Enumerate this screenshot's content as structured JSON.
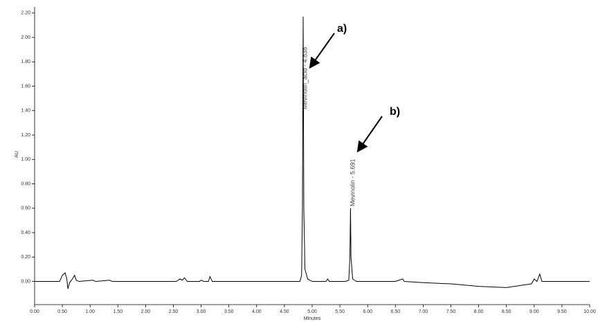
{
  "chart_data": {
    "type": "line",
    "x_label": "Minutes",
    "y_label": "AU",
    "annotations": [
      "a)",
      "b)"
    ],
    "peak_labels": [
      "Mevinolin_acid - 4.838",
      "Mevinolin - 5.691"
    ],
    "color": "#000000",
    "x": [
      0.0,
      0.45,
      0.5,
      0.55,
      0.58,
      0.6,
      0.63,
      0.68,
      0.72,
      0.75,
      0.8,
      1.05,
      1.1,
      1.35,
      1.4,
      2.55,
      2.62,
      2.66,
      2.7,
      2.75,
      2.97,
      3.0,
      3.05,
      3.13,
      3.16,
      3.2,
      4.7,
      4.78,
      4.81,
      4.825,
      4.838,
      4.85,
      4.87,
      4.92,
      5.0,
      5.25,
      5.28,
      5.31,
      5.6,
      5.66,
      5.68,
      5.691,
      5.7,
      5.73,
      5.8,
      6.5,
      6.63,
      6.66,
      7.0,
      7.5,
      8.0,
      8.5,
      8.8,
      8.95,
      9.0,
      9.05,
      9.1,
      9.14,
      9.5,
      10.0
    ],
    "values": [
      0.0,
      0.0,
      0.05,
      0.07,
      0.02,
      -0.06,
      -0.01,
      0.02,
      0.05,
      0.01,
      0.0,
      0.01,
      0.0,
      0.01,
      0.0,
      0.0,
      0.02,
      0.01,
      0.03,
      0.0,
      0.0,
      0.01,
      0.0,
      0.0,
      0.04,
      0.0,
      0.0,
      0.0,
      0.05,
      0.6,
      2.17,
      0.6,
      0.1,
      0.02,
      0.0,
      0.0,
      0.02,
      0.0,
      0.0,
      0.01,
      0.2,
      0.6,
      0.2,
      0.02,
      0.0,
      0.0,
      0.02,
      0.0,
      -0.01,
      -0.02,
      -0.04,
      -0.05,
      -0.03,
      -0.02,
      0.02,
      0.0,
      0.06,
      0.0,
      0.0,
      0.0
    ],
    "xlim": [
      0,
      10
    ],
    "ylim": [
      -0.19,
      2.25
    ],
    "xticks": [
      {
        "value": 0,
        "label": "0.00"
      },
      {
        "value": 0.5,
        "label": "0.50"
      },
      {
        "value": 1,
        "label": "1.00"
      },
      {
        "value": 1.5,
        "label": "1.50"
      },
      {
        "value": 2,
        "label": "2.00"
      },
      {
        "value": 2.5,
        "label": "2.50"
      },
      {
        "value": 3,
        "label": "3.00"
      },
      {
        "value": 3.5,
        "label": "3.50"
      },
      {
        "value": 4,
        "label": "4.00"
      },
      {
        "value": 4.5,
        "label": "4.50"
      },
      {
        "value": 5,
        "label": "5.00"
      },
      {
        "value": 5.5,
        "label": "5.50"
      },
      {
        "value": 6,
        "label": "6.00"
      },
      {
        "value": 6.5,
        "label": "6.50"
      },
      {
        "value": 7,
        "label": "7.00"
      },
      {
        "value": 7.5,
        "label": "7.50"
      },
      {
        "value": 8,
        "label": "8.00"
      },
      {
        "value": 8.5,
        "label": "8.50"
      },
      {
        "value": 9,
        "label": "9.00"
      },
      {
        "value": 9.5,
        "label": "9.50"
      },
      {
        "value": 10,
        "label": "10.00"
      }
    ],
    "yticks": [
      {
        "value": 0,
        "label": "0.00"
      },
      {
        "value": 0.2,
        "label": "0.20"
      },
      {
        "value": 0.4,
        "label": "0.40"
      },
      {
        "value": 0.6,
        "label": "0.60"
      },
      {
        "value": 0.8,
        "label": "0.80"
      },
      {
        "value": 1,
        "label": "1.00"
      },
      {
        "value": 1.2,
        "label": "1.20"
      },
      {
        "value": 1.4,
        "label": "1.40"
      },
      {
        "value": 1.6,
        "label": "1.60"
      },
      {
        "value": 1.8,
        "label": "1.80"
      },
      {
        "value": 2,
        "label": "2.00"
      },
      {
        "value": 2.2,
        "label": "2.20"
      }
    ]
  }
}
